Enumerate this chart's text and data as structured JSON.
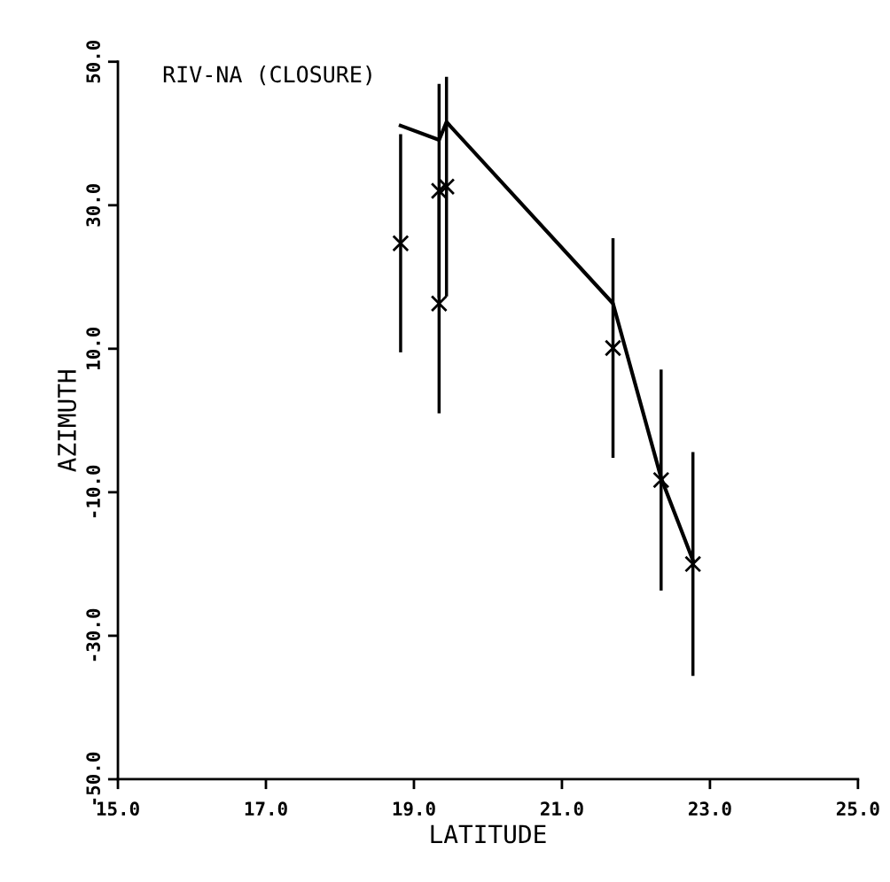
{
  "chart_data": {
    "type": "scatter",
    "title": "RIV-NA (CLOSURE)",
    "xlabel": "LATITUDE",
    "ylabel": "AZIMUTH",
    "xlim": [
      15,
      25
    ],
    "ylim": [
      -50,
      50
    ],
    "xticks": [
      {
        "value": 15,
        "label": "15.0"
      },
      {
        "value": 17,
        "label": "17.0"
      },
      {
        "value": 19,
        "label": "19.0"
      },
      {
        "value": 21,
        "label": "21.0"
      },
      {
        "value": 23,
        "label": "23.0"
      },
      {
        "value": 25,
        "label": "25.0"
      }
    ],
    "yticks": [
      {
        "value": -50,
        "label": "-50.0"
      },
      {
        "value": -30,
        "label": "-30.0"
      },
      {
        "value": -10,
        "label": "-10.0"
      },
      {
        "value": 10,
        "label": "10.0"
      },
      {
        "value": 30,
        "label": "30.0"
      },
      {
        "value": 50,
        "label": "50.0"
      }
    ],
    "grid": false,
    "legend": false,
    "series": [
      {
        "type": "scatter",
        "color": "#000000",
        "marker": "cross",
        "x": [
          18.82,
          19.34,
          19.34,
          19.44,
          21.69,
          22.34,
          22.77
        ],
        "values": [
          24.7,
          16.3,
          32.0,
          32.6,
          10.1,
          -8.3,
          -20.0
        ],
        "errors": [
          15.2,
          15.3,
          14.9,
          15.3,
          15.3,
          15.4,
          15.6
        ]
      },
      {
        "type": "line",
        "color": "#000000",
        "marker": "none",
        "line_style": "solid",
        "x": [
          18.82,
          19.34,
          19.44,
          21.69,
          22.34,
          22.77
        ],
        "values": [
          41.1,
          39.1,
          41.6,
          16.3,
          -8.0,
          -19.5
        ]
      }
    ]
  }
}
